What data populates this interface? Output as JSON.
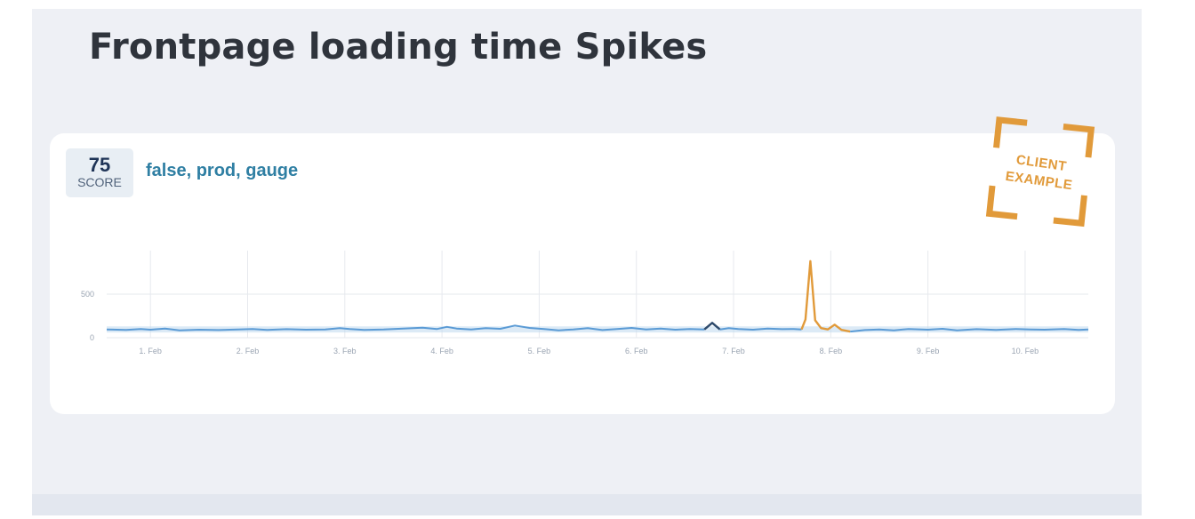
{
  "page": {
    "title": "Frontpage loading time Spikes"
  },
  "card": {
    "score_value": "75",
    "score_label": "SCORE",
    "tags": "false, prod, gauge",
    "stamp": {
      "line1": "CLIENT",
      "line2": "EXAMPLE",
      "color": "#e19a3a"
    }
  },
  "chart_data": {
    "type": "line",
    "xlabel": "",
    "ylabel": "",
    "ylim": [
      0,
      1000
    ],
    "xlim": [
      0.55,
      10.65
    ],
    "yticks": [
      0,
      500
    ],
    "xticks": [
      {
        "x": 1,
        "label": "1. Feb"
      },
      {
        "x": 2,
        "label": "2. Feb"
      },
      {
        "x": 3,
        "label": "3. Feb"
      },
      {
        "x": 4,
        "label": "4. Feb"
      },
      {
        "x": 5,
        "label": "5. Feb"
      },
      {
        "x": 6,
        "label": "6. Feb"
      },
      {
        "x": 7,
        "label": "7. Feb"
      },
      {
        "x": 8,
        "label": "8. Feb"
      },
      {
        "x": 9,
        "label": "9. Feb"
      },
      {
        "x": 10,
        "label": "10. Feb"
      }
    ],
    "grid": true,
    "colors": {
      "normal": "#5b9bd5",
      "band": "#bfd8ee",
      "anomaly_dark": "#2e4a6b",
      "spike": "#e19a3a",
      "grid": "#e6e9ee"
    },
    "band": {
      "x": [
        0.55,
        10.65
      ],
      "upper": 130,
      "lower": 60
    },
    "series": [
      {
        "role": "normal",
        "x": [
          0.55,
          0.75,
          0.9,
          1.0,
          1.15,
          1.3,
          1.5,
          1.7,
          1.9,
          2.05,
          2.2,
          2.4,
          2.6,
          2.8,
          2.95,
          3.05,
          3.2,
          3.4,
          3.6,
          3.8,
          3.95,
          4.05,
          4.15,
          4.3,
          4.45,
          4.6,
          4.75,
          4.9,
          5.05,
          5.2,
          5.35,
          5.5,
          5.65,
          5.8,
          5.95,
          6.1,
          6.25,
          6.4,
          6.55,
          6.7
        ],
        "y": [
          95,
          90,
          100,
          92,
          105,
          85,
          92,
          88,
          95,
          100,
          90,
          98,
          92,
          95,
          110,
          100,
          90,
          95,
          105,
          115,
          100,
          125,
          105,
          95,
          110,
          102,
          140,
          112,
          100,
          85,
          95,
          110,
          88,
          100,
          112,
          95,
          105,
          92,
          100,
          95
        ]
      },
      {
        "role": "anomaly",
        "x": [
          6.7,
          6.78,
          6.86
        ],
        "y": [
          95,
          170,
          95
        ]
      },
      {
        "role": "normal",
        "x": [
          6.86,
          6.95,
          7.05,
          7.2,
          7.35,
          7.5,
          7.62,
          7.7
        ],
        "y": [
          95,
          110,
          100,
          92,
          105,
          98,
          100,
          95
        ]
      },
      {
        "role": "spike",
        "x": [
          7.7,
          7.74,
          7.79,
          7.84,
          7.9,
          7.97,
          8.04,
          8.11,
          8.2
        ],
        "y": [
          95,
          210,
          880,
          200,
          110,
          95,
          150,
          90,
          70
        ]
      },
      {
        "role": "normal",
        "x": [
          8.2,
          8.35,
          8.5,
          8.65,
          8.8,
          9.0,
          9.15,
          9.3,
          9.5,
          9.7,
          9.9,
          10.05,
          10.2,
          10.4,
          10.55,
          10.65
        ],
        "y": [
          70,
          88,
          95,
          85,
          100,
          92,
          102,
          85,
          98,
          90,
          100,
          95,
          92,
          100,
          90,
          95
        ]
      }
    ]
  }
}
